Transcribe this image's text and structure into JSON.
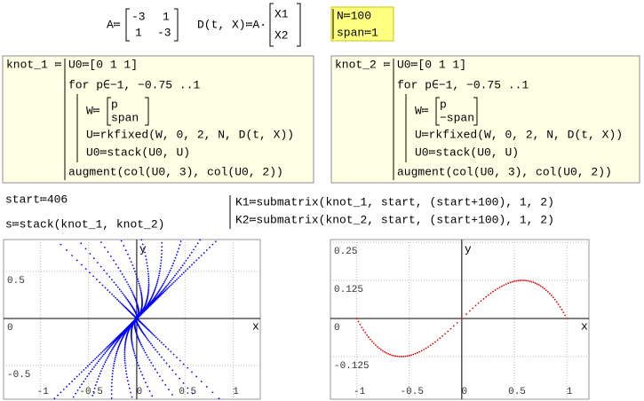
{
  "definitions": {
    "A_lhs": "A≔",
    "A_matrix": [
      [
        -3,
        1
      ],
      [
        1,
        -3
      ]
    ],
    "D_lhs": "D(t, X)≔A·",
    "D_vector": [
      "X1",
      "X2"
    ],
    "N": "N≔100",
    "span": "span≔1"
  },
  "programs": [
    {
      "name": "knot_1 ≔",
      "init": "U0≔[0 1 1]",
      "loop": "for p∈−1, −0.75 ..1",
      "w_lhs": "W≔",
      "w_vector": [
        "p",
        "span"
      ],
      "step": "U≔rkfixed(W, 0, 2, N, D(t, X))",
      "stack": "U0≔stack(U0, U)",
      "result": "augment(col(U0, 3), col(U0, 2))"
    },
    {
      "name": "knot_2 ≔",
      "init": "U0≔[0 1 1]",
      "loop": "for p∈−1, −0.75 ..1",
      "w_lhs": "W≔",
      "w_vector": [
        "p",
        "−span"
      ],
      "step": "U≔rkfixed(W, 0, 2, N, D(t, X))",
      "stack": "U0≔stack(U0, U)",
      "result": "augment(col(U0, 3), col(U0, 2))"
    }
  ],
  "assignments": {
    "start": "start≔406",
    "s": "s≔stack(knot_1, knot_2)",
    "K1": "K1≔submatrix(knot_1, start, (start+100), 1, 2)",
    "K2": "K2≔submatrix(knot_2, start, (start+100), 1, 2)"
  },
  "plots": [
    {
      "x_label": "x",
      "y_label": "y",
      "xlim": [
        -1.38,
        1.28
      ],
      "ylim": [
        -0.86,
        0.84
      ],
      "xticks": [
        -1,
        -0.5,
        0,
        0.5,
        1
      ],
      "yticks": [
        0.5,
        0,
        -0.5
      ],
      "color": "#0000ff"
    },
    {
      "x_label": "x",
      "y_label": "y",
      "xlim": [
        -1.25,
        1.21
      ],
      "ylim": [
        -0.265,
        0.259
      ],
      "xticks": [
        -1,
        -0.5,
        0,
        0.5,
        1
      ],
      "yticks": [
        0.25,
        0.125,
        0,
        -0.125
      ],
      "color": "#e00000"
    }
  ]
}
